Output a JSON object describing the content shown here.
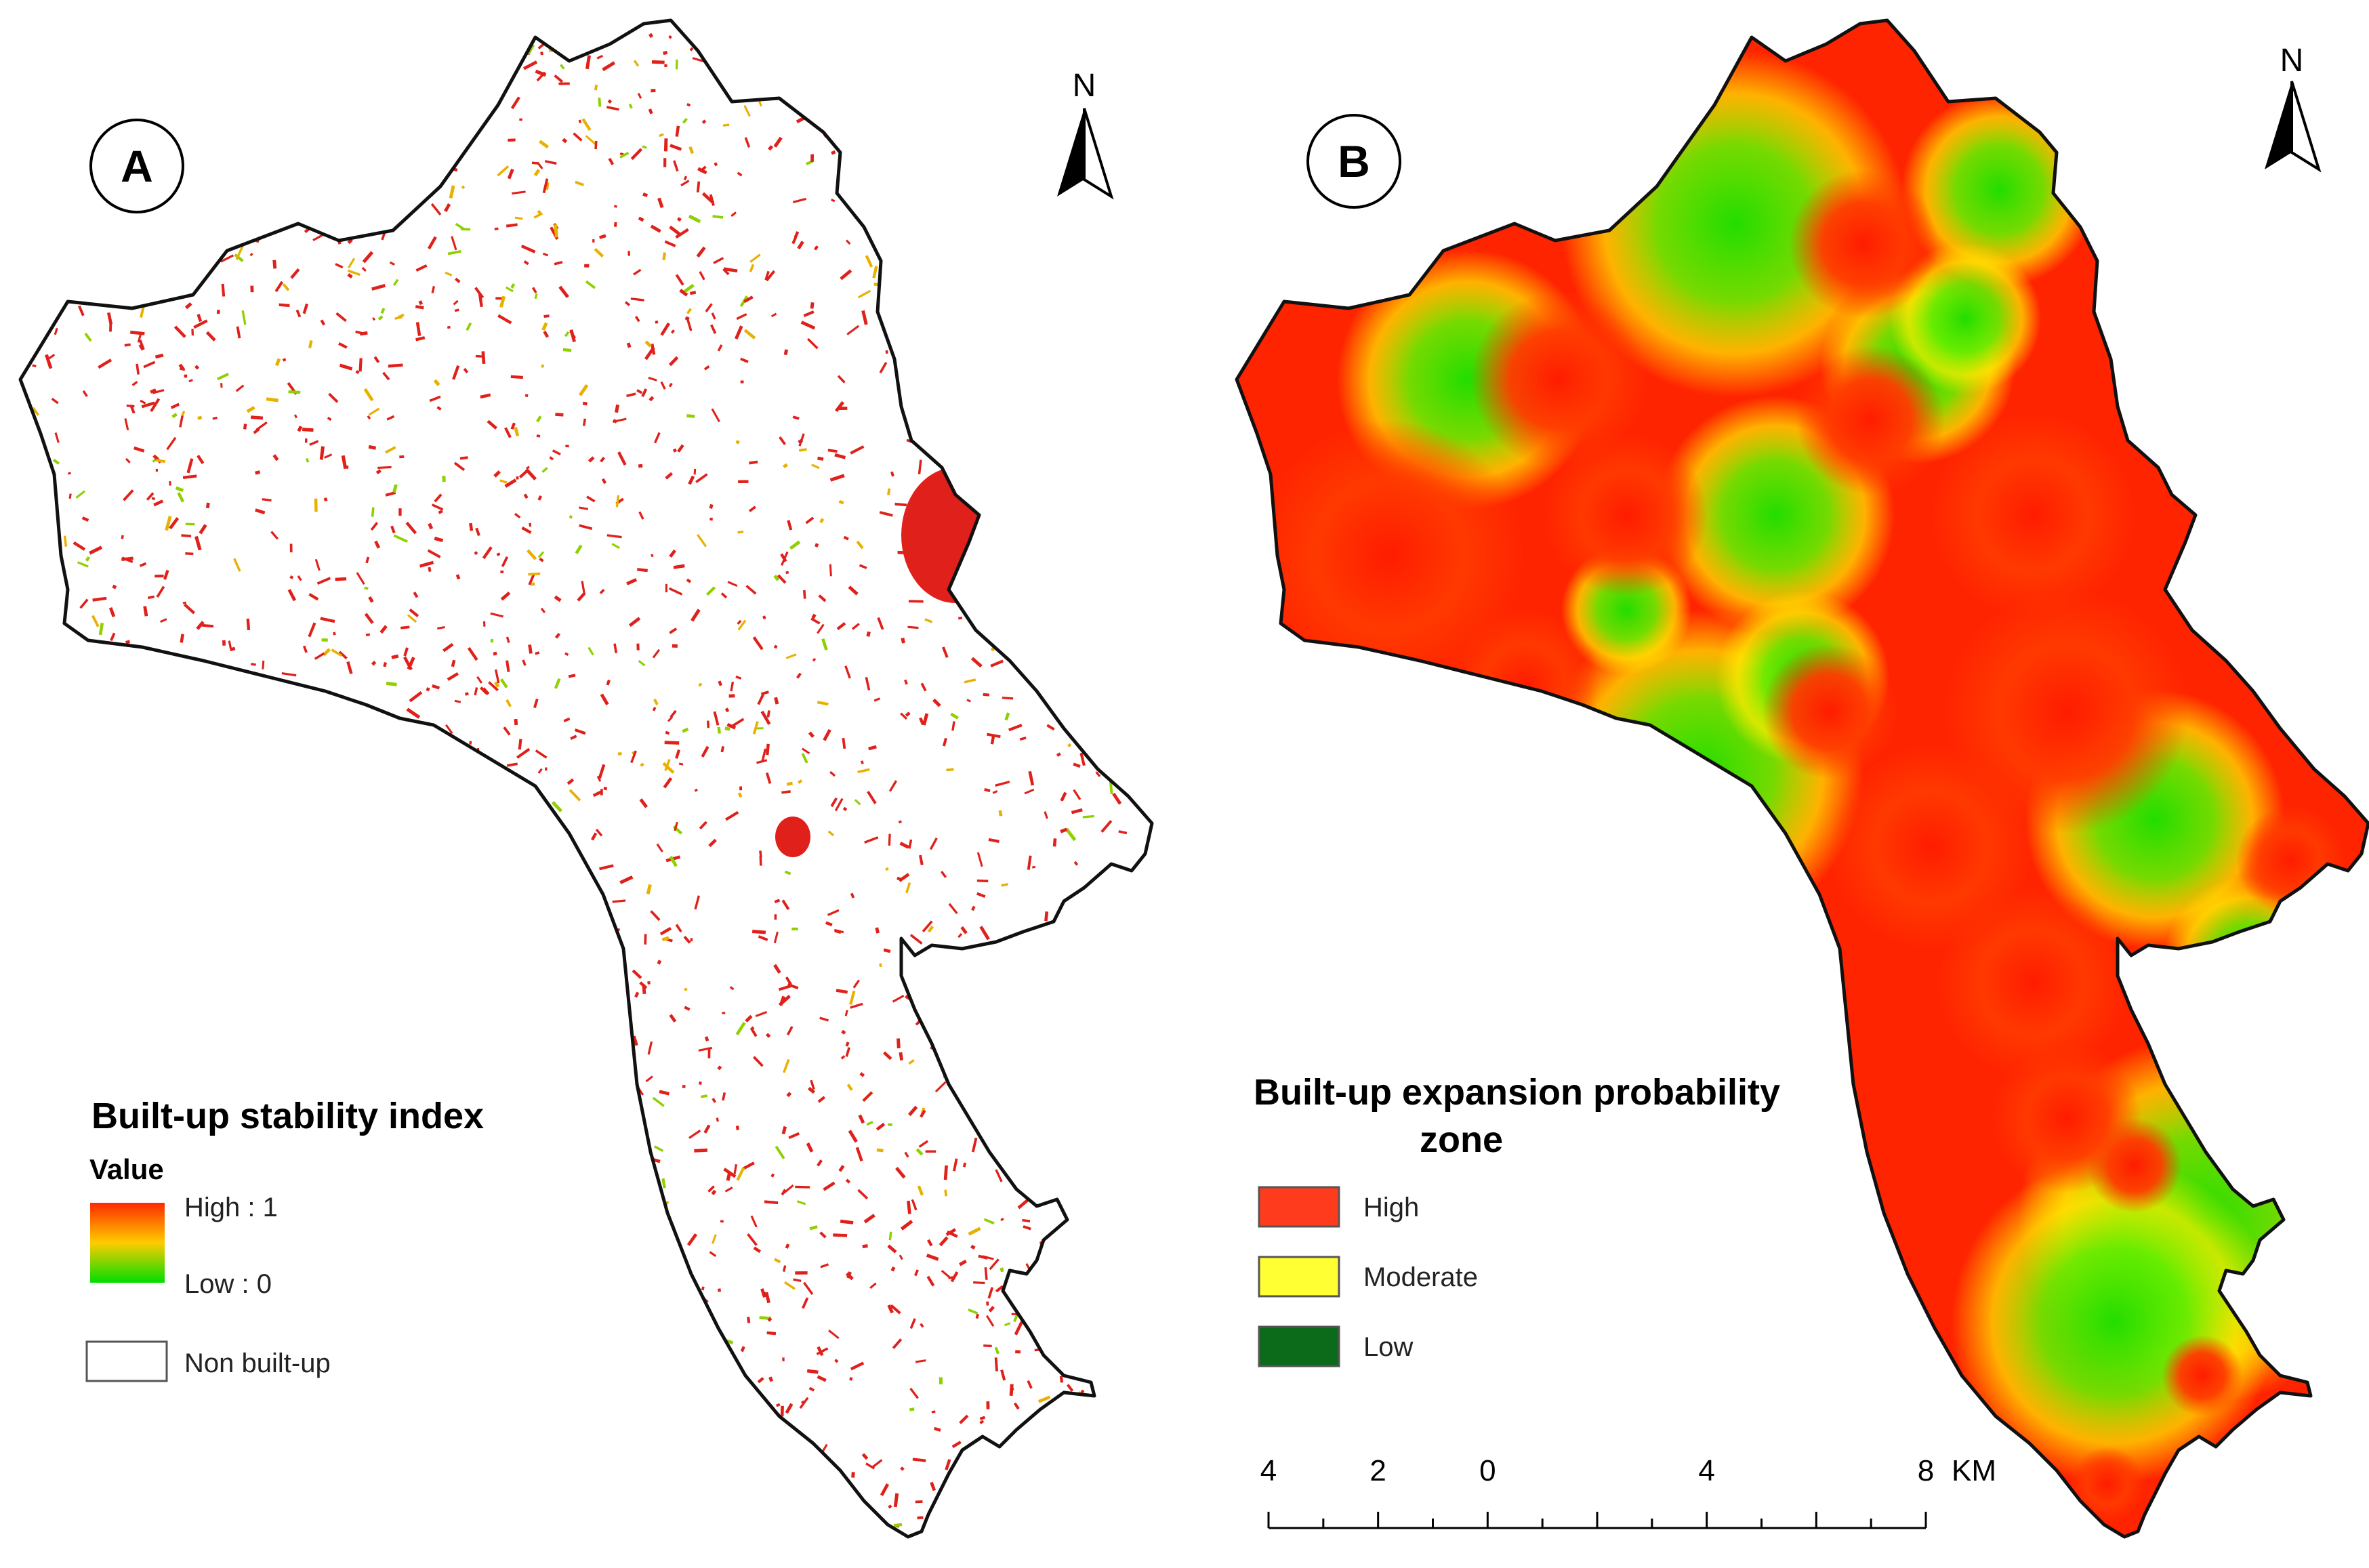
{
  "panel_a": {
    "label": "A",
    "north_label": "N",
    "legend": {
      "title": "Built-up stability index",
      "value_heading": "Value",
      "high_label": "High : 1",
      "low_label": "Low : 0",
      "non_builtup_label": "Non built-up",
      "gradient_colors": [
        "#ff2a00",
        "#ffcc00",
        "#00dd00"
      ]
    }
  },
  "panel_b": {
    "label": "B",
    "north_label": "N",
    "legend": {
      "title_line1": "Built-up expansion probability",
      "title_line2": "zone",
      "classes": [
        {
          "label": "High",
          "color": "#ff3b1e"
        },
        {
          "label": "Moderate",
          "color": "#ffff33"
        },
        {
          "label": "Low",
          "color": "#0b6b1b"
        }
      ]
    },
    "scale_bar": {
      "ticks": [
        "4",
        "2",
        "0",
        "4",
        "8"
      ],
      "unit": "KM"
    }
  },
  "colors": {
    "builtup_red": "#e0201a",
    "zone_high": "#ff1c00",
    "zone_moderate": "#ffee00",
    "zone_low": "#22dd00",
    "boundary": "#111111"
  }
}
